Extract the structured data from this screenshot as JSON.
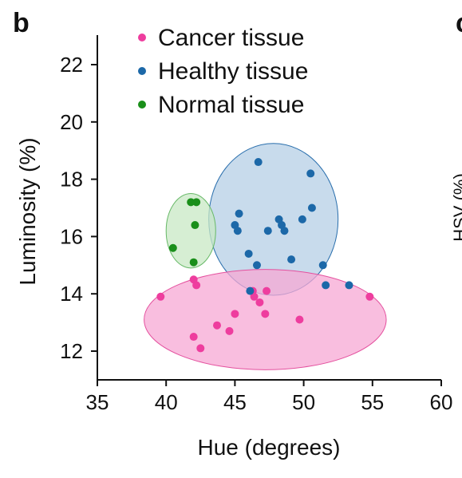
{
  "panel_label": "b",
  "next_panel_label": "c",
  "cropped_neighbor_label": "HSV (%)",
  "chart_data": {
    "type": "scatter",
    "title": "",
    "xlabel": "Hue (degrees)",
    "ylabel": "Luminosity (%)",
    "xlim": [
      35,
      60
    ],
    "ylim": [
      11,
      23
    ],
    "x_ticks": [
      35,
      40,
      45,
      50,
      55,
      60
    ],
    "y_ticks": [
      12,
      14,
      16,
      18,
      20,
      22
    ],
    "grid": false,
    "legend_position": "top-left",
    "series": [
      {
        "name": "Cancer tissue",
        "color": "#ee3d9e",
        "ellipse": {
          "cx": 47.2,
          "cy": 13.1,
          "rx": 8.8,
          "ry": 1.75,
          "fill": "#f7a8d4",
          "stroke": "#e4509e"
        },
        "points": [
          [
            39.6,
            13.9
          ],
          [
            42.0,
            14.5
          ],
          [
            42.2,
            14.3
          ],
          [
            42.0,
            12.5
          ],
          [
            42.5,
            12.1
          ],
          [
            43.7,
            12.9
          ],
          [
            44.6,
            12.7
          ],
          [
            45.0,
            13.3
          ],
          [
            46.3,
            14.1
          ],
          [
            46.4,
            13.9
          ],
          [
            46.8,
            13.7
          ],
          [
            47.2,
            13.3
          ],
          [
            47.3,
            14.1
          ],
          [
            49.7,
            13.1
          ],
          [
            54.8,
            13.9
          ]
        ]
      },
      {
        "name": "Healthy tissue",
        "color": "#1c68a8",
        "ellipse": {
          "cx": 47.8,
          "cy": 16.6,
          "rx": 4.7,
          "ry": 2.65,
          "fill": "#b5cfe6",
          "stroke": "#2a6fad"
        },
        "points": [
          [
            46.7,
            18.6
          ],
          [
            50.5,
            18.2
          ],
          [
            50.6,
            17.0
          ],
          [
            49.9,
            16.6
          ],
          [
            45.3,
            16.8
          ],
          [
            45.0,
            16.4
          ],
          [
            45.2,
            16.2
          ],
          [
            47.4,
            16.2
          ],
          [
            48.2,
            16.6
          ],
          [
            48.4,
            16.4
          ],
          [
            48.6,
            16.2
          ],
          [
            46.0,
            15.4
          ],
          [
            46.6,
            15.0
          ],
          [
            49.1,
            15.2
          ],
          [
            51.4,
            15.0
          ],
          [
            46.1,
            14.1
          ],
          [
            51.6,
            14.3
          ],
          [
            53.3,
            14.3
          ]
        ]
      },
      {
        "name": "Normal tissue",
        "color": "#1a8f1a",
        "ellipse": {
          "cx": 41.8,
          "cy": 16.2,
          "rx": 1.8,
          "ry": 1.3,
          "fill": "#c8e8c4",
          "stroke": "#66b866"
        },
        "points": [
          [
            41.8,
            17.2
          ],
          [
            42.2,
            17.2
          ],
          [
            42.1,
            16.4
          ],
          [
            40.5,
            15.6
          ],
          [
            42.0,
            15.1
          ]
        ]
      }
    ]
  }
}
